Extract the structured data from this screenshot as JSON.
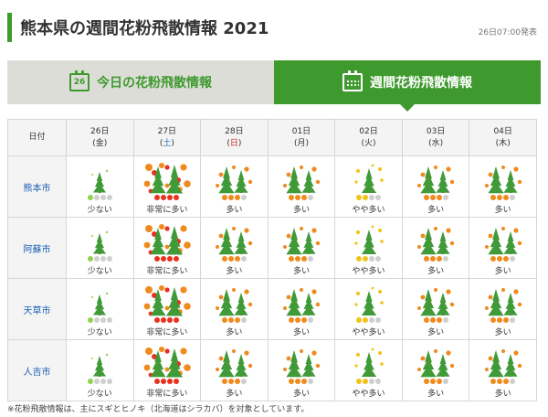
{
  "header": {
    "title": "熊本県の週間花粉飛散情報 2021",
    "published": "26日07:00発表"
  },
  "tabs": {
    "today_icon_day": "26",
    "today_label": "今日の花粉飛散情報",
    "week_label": "週間花粉飛散情報"
  },
  "table": {
    "corner_label": "日付",
    "days": [
      {
        "date": "26日",
        "weekday": "金",
        "type": "weekday"
      },
      {
        "date": "27日",
        "weekday": "土",
        "type": "sat"
      },
      {
        "date": "28日",
        "weekday": "日",
        "type": "sun"
      },
      {
        "date": "01日",
        "weekday": "月",
        "type": "weekday"
      },
      {
        "date": "02日",
        "weekday": "火",
        "type": "weekday"
      },
      {
        "date": "03日",
        "weekday": "水",
        "type": "weekday"
      },
      {
        "date": "04日",
        "weekday": "木",
        "type": "weekday"
      }
    ],
    "rows": [
      {
        "city": "熊本市",
        "levels": [
          {
            "level": 1,
            "label": "少ない"
          },
          {
            "level": 4,
            "label": "非常に多い"
          },
          {
            "level": 3,
            "label": "多い"
          },
          {
            "level": 3,
            "label": "多い"
          },
          {
            "level": 2,
            "label": "やや多い"
          },
          {
            "level": 3,
            "label": "多い"
          },
          {
            "level": 3,
            "label": "多い"
          }
        ]
      },
      {
        "city": "阿蘇市",
        "levels": [
          {
            "level": 1,
            "label": "少ない"
          },
          {
            "level": 4,
            "label": "非常に多い"
          },
          {
            "level": 3,
            "label": "多い"
          },
          {
            "level": 3,
            "label": "多い"
          },
          {
            "level": 2,
            "label": "やや多い"
          },
          {
            "level": 3,
            "label": "多い"
          },
          {
            "level": 3,
            "label": "多い"
          }
        ]
      },
      {
        "city": "天草市",
        "levels": [
          {
            "level": 1,
            "label": "少ない"
          },
          {
            "level": 4,
            "label": "非常に多い"
          },
          {
            "level": 3,
            "label": "多い"
          },
          {
            "level": 3,
            "label": "多い"
          },
          {
            "level": 2,
            "label": "やや多い"
          },
          {
            "level": 3,
            "label": "多い"
          },
          {
            "level": 3,
            "label": "多い"
          }
        ]
      },
      {
        "city": "人吉市",
        "levels": [
          {
            "level": 1,
            "label": "少ない"
          },
          {
            "level": 4,
            "label": "非常に多い"
          },
          {
            "level": 3,
            "label": "多い"
          },
          {
            "level": 3,
            "label": "多い"
          },
          {
            "level": 2,
            "label": "やや多い"
          },
          {
            "level": 3,
            "label": "多い"
          },
          {
            "level": 3,
            "label": "多い"
          }
        ]
      }
    ]
  },
  "level_colors": {
    "1": "#8fd14f",
    "2": "#f2c21a",
    "3": "#f08a1c",
    "4": "#e8321e",
    "off": "#cfcfcf"
  },
  "colors": {
    "accent": "#3e9a2e",
    "tree": "#3f9a37",
    "trunk": "#8a5a2b"
  },
  "footnote": "※花粉飛散情報は、主にスギとヒノキ（北海道はシラカバ）を対象としています。"
}
